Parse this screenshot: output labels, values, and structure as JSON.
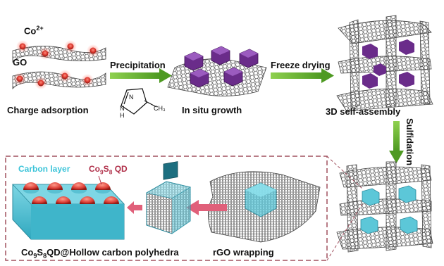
{
  "labels": {
    "ion": "Co",
    "ion_charge": "2+",
    "go": "GO",
    "charge_adsorption": "Charge adsorption",
    "precipitation": "Precipitation",
    "in_situ_growth": "In situ growth",
    "freeze_drying": "Freeze drying",
    "self_assembly": "3D self-assembly",
    "sulfidation": "Sulfidation",
    "carbon_layer": "Carbon layer",
    "qd_prefix": "Co",
    "qd_sub1": "9",
    "qd_mid": "S",
    "qd_sub2": "8",
    "qd_suffix": " QD",
    "final_prefix": "Co",
    "final_sub1": "9",
    "final_mid": "S",
    "final_sub2": "8",
    "final_suffix": "QD@Hollow carbon polyhedra",
    "rgo_wrapping": "rGO wrapping",
    "molecule_n": "N",
    "molecule_nh": "N",
    "molecule_h": "H",
    "molecule_ch3": "CH₃"
  },
  "colors": {
    "arrow_green": "#5fae2e",
    "arrow_pink": "#e0607a",
    "cobalt_red": "#d9342b",
    "zif_purple": "#6a2c8a",
    "cyan_poly": "#5cc7d8",
    "graphene": "#555555",
    "dashed_box": "#a0505e"
  }
}
